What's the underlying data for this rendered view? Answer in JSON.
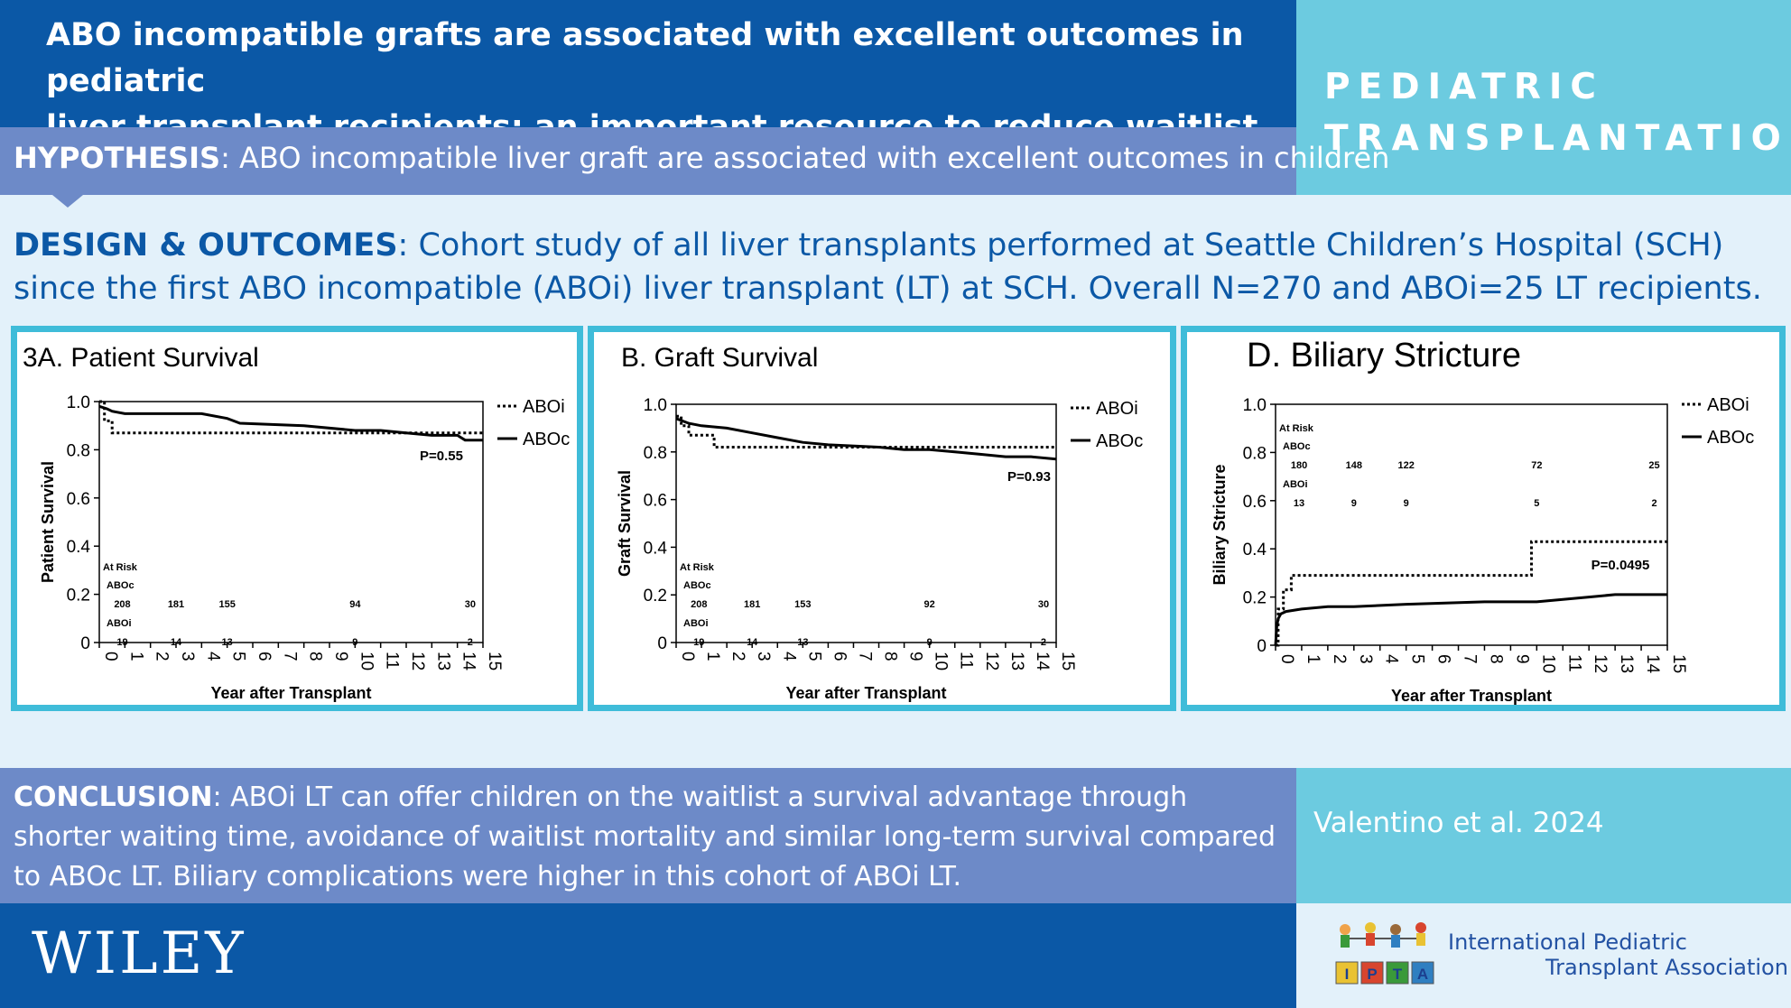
{
  "header": {
    "title_line1": "ABO incompatible grafts are associated with excellent outcomes in pediatric",
    "title_line2": "liver transplant recipients: an important resource to reduce waitlist mortality",
    "journal_line1": "PEDIATRIC",
    "journal_line2": "TRANSPLANTATION"
  },
  "hypothesis": {
    "label": "HYPOTHESIS",
    "text": ": ABO incompatible liver graft are associated with excellent outcomes in children"
  },
  "design": {
    "label": "DESIGN & OUTCOMES",
    "text": ": Cohort study of all liver transplants performed at Seattle Children’s Hospital (SCH) since the first ABO incompatible (ABOi) liver transplant (LT) at SCH. Overall N=270 and ABOi=25 LT recipients."
  },
  "colors": {
    "dark_blue": "#0b58a6",
    "panel_border": "#3fbcd9",
    "banner_purple": "#6d8ac8",
    "teal": "#6ccbe0"
  },
  "chart_data": [
    {
      "type": "line",
      "panel_title": "3A. Patient Survival",
      "xlabel": "Year after Transplant",
      "ylabel": "Patient Survival",
      "xlim": [
        0,
        15
      ],
      "ylim": [
        0,
        1.0
      ],
      "xticks": [
        "0",
        "1",
        "2",
        "3",
        "4",
        "5",
        "6",
        "7",
        "8",
        "9",
        "10",
        "11",
        "12",
        "13",
        "14",
        "15"
      ],
      "yticks": [
        "0",
        "0.2",
        "0.4",
        "0.6",
        "0.8",
        "1.0"
      ],
      "pvalue": "P=0.55",
      "legend": [
        "ABOi",
        "ABOc"
      ],
      "series": [
        {
          "name": "ABOi",
          "style": "dotted",
          "x": [
            0,
            0.2,
            0.2,
            0.5,
            0.5,
            15
          ],
          "y": [
            1.0,
            1.0,
            0.92,
            0.92,
            0.87,
            0.87
          ]
        },
        {
          "name": "ABOc",
          "style": "solid",
          "x": [
            0,
            0.3,
            0.5,
            1,
            4,
            5,
            5.5,
            8,
            10,
            11,
            12,
            13,
            14,
            14.3,
            15
          ],
          "y": [
            0.98,
            0.97,
            0.96,
            0.95,
            0.95,
            0.93,
            0.91,
            0.9,
            0.88,
            0.88,
            0.87,
            0.86,
            0.86,
            0.84,
            0.84
          ]
        }
      ],
      "at_risk": {
        "label": "At Risk",
        "groups": [
          {
            "name": "ABOc",
            "x": [
              0.9,
              3,
              5,
              10,
              14.5
            ],
            "values": [
              "208",
              "181",
              "155",
              "94",
              "30"
            ]
          },
          {
            "name": "ABOi",
            "x": [
              0.9,
              3,
              5,
              10,
              14.5
            ],
            "values": [
              "19",
              "14",
              "13",
              "9",
              "2"
            ]
          }
        ]
      }
    },
    {
      "type": "line",
      "panel_title": "B. Graft Survival",
      "xlabel": "Year after Transplant",
      "ylabel": "Graft Survival",
      "xlim": [
        0,
        15
      ],
      "ylim": [
        0,
        1.0
      ],
      "xticks": [
        "0",
        "1",
        "2",
        "3",
        "4",
        "5",
        "6",
        "7",
        "8",
        "9",
        "10",
        "11",
        "12",
        "13",
        "14",
        "15"
      ],
      "yticks": [
        "0",
        "0.2",
        "0.4",
        "0.6",
        "0.8",
        "1.0"
      ],
      "pvalue": "P=0.93",
      "legend": [
        "ABOi",
        "ABOc"
      ],
      "series": [
        {
          "name": "ABOi",
          "style": "dotted",
          "x": [
            0,
            0.2,
            0.2,
            0.5,
            0.5,
            1.5,
            1.5,
            15
          ],
          "y": [
            0.95,
            0.95,
            0.91,
            0.91,
            0.87,
            0.87,
            0.82,
            0.82
          ]
        },
        {
          "name": "ABOc",
          "style": "solid",
          "x": [
            0,
            0.5,
            1,
            2,
            3,
            4,
            5,
            6,
            8,
            9,
            10,
            11,
            12,
            13,
            14,
            15
          ],
          "y": [
            0.94,
            0.92,
            0.91,
            0.9,
            0.88,
            0.86,
            0.84,
            0.83,
            0.82,
            0.81,
            0.81,
            0.8,
            0.79,
            0.78,
            0.78,
            0.77
          ]
        }
      ],
      "at_risk": {
        "label": "At Risk",
        "groups": [
          {
            "name": "ABOc",
            "x": [
              0.9,
              3,
              5,
              10,
              14.5
            ],
            "values": [
              "208",
              "181",
              "153",
              "92",
              "30"
            ]
          },
          {
            "name": "ABOi",
            "x": [
              0.9,
              3,
              5,
              10,
              14.5
            ],
            "values": [
              "19",
              "14",
              "13",
              "9",
              "2"
            ]
          }
        ]
      }
    },
    {
      "type": "line",
      "panel_title": "D. Biliary Stricture",
      "xlabel": "Year after Transplant",
      "ylabel": "Biliary Stricture",
      "xlim": [
        0,
        15
      ],
      "ylim": [
        0,
        1.0
      ],
      "xticks": [
        "0",
        "1",
        "2",
        "3",
        "4",
        "5",
        "6",
        "7",
        "8",
        "9",
        "10",
        "11",
        "12",
        "13",
        "14",
        "15"
      ],
      "yticks": [
        "0",
        "0.2",
        "0.4",
        "0.6",
        "0.8",
        "1.0"
      ],
      "pvalue": "P=0.0495",
      "legend": [
        "ABOi",
        "ABOc"
      ],
      "series": [
        {
          "name": "ABOi",
          "style": "dotted",
          "x": [
            0,
            0.1,
            0.1,
            0.3,
            0.3,
            0.6,
            0.6,
            9.8,
            9.8,
            15
          ],
          "y": [
            0,
            0,
            0.15,
            0.15,
            0.23,
            0.23,
            0.29,
            0.29,
            0.43,
            0.43
          ]
        },
        {
          "name": "ABOc",
          "style": "solid",
          "x": [
            0,
            0.05,
            0.1,
            0.2,
            0.4,
            1,
            2,
            3,
            5,
            8,
            10,
            11,
            12,
            13,
            15
          ],
          "y": [
            0,
            0.08,
            0.11,
            0.13,
            0.14,
            0.15,
            0.16,
            0.16,
            0.17,
            0.18,
            0.18,
            0.19,
            0.2,
            0.21,
            0.21
          ]
        }
      ],
      "at_risk": {
        "label": "At Risk",
        "groups": [
          {
            "name": "ABOc",
            "x": [
              0.9,
              3,
              5,
              10,
              14.5
            ],
            "values": [
              "180",
              "148",
              "122",
              "72",
              "25"
            ]
          },
          {
            "name": "ABOi",
            "x": [
              0.9,
              3,
              5,
              10,
              14.5
            ],
            "values": [
              "13",
              "9",
              "9",
              "5",
              "2"
            ]
          }
        ]
      }
    }
  ],
  "conclusion": {
    "label": "CONCLUSION",
    "text": ": ABOi LT can offer children on the waitlist a survival advantage through shorter waiting time, avoidance of waitlist mortality and similar long-term survival compared to ABOc LT. Biliary complications were higher in this cohort of ABOi LT."
  },
  "citation": "Valentino et al. 2024",
  "footer": {
    "publisher": "WILEY",
    "association_line1": "International Pediatric",
    "association_line2": "Transplant Association",
    "logo_letters": [
      "I",
      "P",
      "T",
      "A"
    ]
  }
}
